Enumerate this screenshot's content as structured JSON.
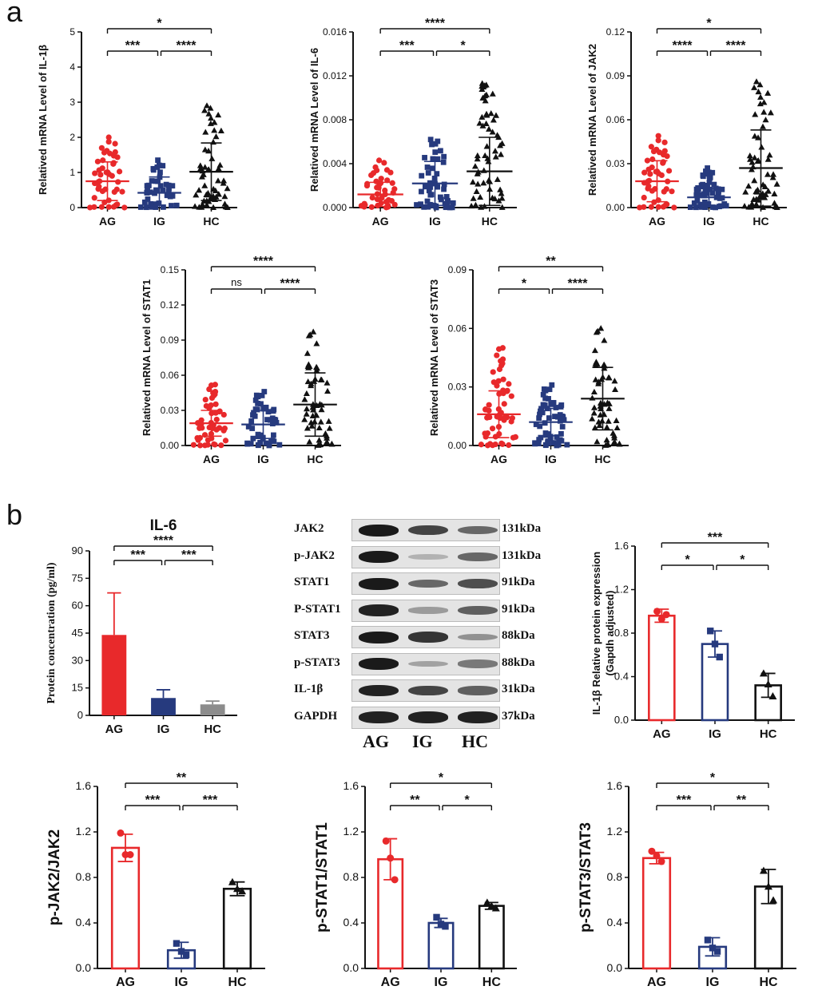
{
  "panel_labels": {
    "a": "a",
    "b": "b"
  },
  "colors": {
    "AG": "#e8292b",
    "IG": "#263a7e",
    "HC": "#111111",
    "IL6_HC_bar": "#8c8c8c"
  },
  "chart_data": [
    {
      "id": "il1b_mrna",
      "type": "scatter",
      "title": "",
      "xlabel": "",
      "ylabel": "Relatived  mRNA Level of IL-1β",
      "categories": [
        "AG",
        "IG",
        "HC"
      ],
      "ylim": [
        0,
        5
      ],
      "yticks": [
        "0",
        "1",
        "2",
        "3",
        "4",
        "5"
      ],
      "series": [
        {
          "name": "AG",
          "n": 45,
          "mean": 0.75,
          "sd": 0.55,
          "max": 2.0
        },
        {
          "name": "IG",
          "n": 45,
          "mean": 0.42,
          "sd": 0.45,
          "max": 1.35
        },
        {
          "name": "HC",
          "n": 60,
          "mean": 1.02,
          "sd": 0.82,
          "max": 2.9
        }
      ],
      "brackets": [
        {
          "from": 0,
          "to": 1,
          "label": "***",
          "level": 0
        },
        {
          "from": 1,
          "to": 2,
          "label": "****",
          "level": 0
        },
        {
          "from": 0,
          "to": 2,
          "label": "*",
          "level": 1
        }
      ]
    },
    {
      "id": "il6_mrna",
      "type": "scatter",
      "title": "",
      "xlabel": "",
      "ylabel": "Relatived  mRNA Level of IL-6",
      "categories": [
        "AG",
        "IG",
        "HC"
      ],
      "ylim": [
        0,
        0.016
      ],
      "yticks": [
        "0.000",
        "0.004",
        "0.008",
        "0.012",
        "0.016"
      ],
      "series": [
        {
          "name": "AG",
          "n": 40,
          "mean": 0.0012,
          "sd": 0.0011,
          "max": 0.0043
        },
        {
          "name": "IG",
          "n": 50,
          "mean": 0.0022,
          "sd": 0.002,
          "max": 0.0062
        },
        {
          "name": "HC",
          "n": 60,
          "mean": 0.0033,
          "sd": 0.0031,
          "max": 0.0113
        }
      ],
      "brackets": [
        {
          "from": 0,
          "to": 1,
          "label": "***",
          "level": 0
        },
        {
          "from": 1,
          "to": 2,
          "label": "*",
          "level": 0
        },
        {
          "from": 0,
          "to": 2,
          "label": "****",
          "level": 1
        }
      ]
    },
    {
      "id": "jak2_mrna",
      "type": "scatter",
      "title": "",
      "xlabel": "",
      "ylabel": "Relatived  mRNA Level of JAK2",
      "categories": [
        "AG",
        "IG",
        "HC"
      ],
      "ylim": [
        0,
        0.12
      ],
      "yticks": [
        "0.00",
        "0.03",
        "0.06",
        "0.09",
        "0.12"
      ],
      "series": [
        {
          "name": "AG",
          "n": 45,
          "mean": 0.018,
          "sd": 0.014,
          "max": 0.049
        },
        {
          "name": "IG",
          "n": 60,
          "mean": 0.007,
          "sd": 0.006,
          "max": 0.027
        },
        {
          "name": "HC",
          "n": 60,
          "mean": 0.027,
          "sd": 0.026,
          "max": 0.086
        }
      ],
      "brackets": [
        {
          "from": 0,
          "to": 1,
          "label": "****",
          "level": 0
        },
        {
          "from": 1,
          "to": 2,
          "label": "****",
          "level": 0
        },
        {
          "from": 0,
          "to": 2,
          "label": "*",
          "level": 1
        }
      ]
    },
    {
      "id": "stat1_mrna",
      "type": "scatter",
      "title": "",
      "xlabel": "",
      "ylabel": "Relatived  mRNA Level of STAT1",
      "categories": [
        "AG",
        "IG",
        "HC"
      ],
      "ylim": [
        0,
        0.15
      ],
      "yticks": [
        "0.00",
        "0.03",
        "0.06",
        "0.09",
        "0.12",
        "0.15"
      ],
      "series": [
        {
          "name": "AG",
          "n": 50,
          "mean": 0.019,
          "sd": 0.011,
          "max": 0.052
        },
        {
          "name": "IG",
          "n": 50,
          "mean": 0.018,
          "sd": 0.012,
          "max": 0.046
        },
        {
          "name": "HC",
          "n": 55,
          "mean": 0.035,
          "sd": 0.027,
          "max": 0.097
        }
      ],
      "brackets": [
        {
          "from": 0,
          "to": 1,
          "label": "ns",
          "level": 0
        },
        {
          "from": 1,
          "to": 2,
          "label": "****",
          "level": 0
        },
        {
          "from": 0,
          "to": 2,
          "label": "****",
          "level": 1
        }
      ]
    },
    {
      "id": "stat3_mrna",
      "type": "scatter",
      "title": "",
      "xlabel": "",
      "ylabel": "Relatived  mRNA Level of STAT3",
      "categories": [
        "AG",
        "IG",
        "HC"
      ],
      "ylim": [
        0,
        0.09
      ],
      "yticks": [
        "0.00",
        "0.03",
        "0.06",
        "0.09"
      ],
      "series": [
        {
          "name": "AG",
          "n": 55,
          "mean": 0.016,
          "sd": 0.012,
          "max": 0.05
        },
        {
          "name": "IG",
          "n": 60,
          "mean": 0.012,
          "sd": 0.007,
          "max": 0.031
        },
        {
          "name": "HC",
          "n": 55,
          "mean": 0.024,
          "sd": 0.016,
          "max": 0.06
        }
      ],
      "brackets": [
        {
          "from": 0,
          "to": 1,
          "label": "*",
          "level": 0
        },
        {
          "from": 1,
          "to": 2,
          "label": "****",
          "level": 0
        },
        {
          "from": 0,
          "to": 2,
          "label": "**",
          "level": 1
        }
      ]
    },
    {
      "id": "il6_protein",
      "type": "bar",
      "style": "filled",
      "title": "IL-6",
      "xlabel": "",
      "ylabel": "Protein concentration (pg/ml)",
      "categories": [
        "AG",
        "IG",
        "HC"
      ],
      "values": [
        44,
        9.5,
        6
      ],
      "errors": [
        23,
        4.5,
        1.8
      ],
      "ylim": [
        0,
        90
      ],
      "yticks": [
        "0",
        "15",
        "30",
        "45",
        "60",
        "75",
        "90"
      ],
      "brackets": [
        {
          "from": 0,
          "to": 1,
          "label": "***",
          "level": 0
        },
        {
          "from": 1,
          "to": 2,
          "label": "***",
          "level": 0
        },
        {
          "from": 0,
          "to": 2,
          "label": "****",
          "level": 1
        }
      ]
    },
    {
      "id": "il1b_protein",
      "type": "bar",
      "style": "hollow",
      "title": "",
      "xlabel": "",
      "ylabel": "IL-1β  Relative protein expression",
      "ylabel2": "(Gapdh adjusted)",
      "categories": [
        "AG",
        "IG",
        "HC"
      ],
      "values": [
        0.96,
        0.7,
        0.32
      ],
      "errors": [
        0.06,
        0.12,
        0.11
      ],
      "points": [
        [
          1.0,
          0.93,
          0.97
        ],
        [
          0.82,
          0.7,
          0.58
        ],
        [
          0.43,
          0.33,
          0.22
        ]
      ],
      "ylim": [
        0,
        1.6
      ],
      "yticks": [
        "0.0",
        "0.4",
        "0.8",
        "1.2",
        "1.6"
      ],
      "brackets": [
        {
          "from": 0,
          "to": 1,
          "label": "*",
          "level": 0
        },
        {
          "from": 1,
          "to": 2,
          "label": "*",
          "level": 0
        },
        {
          "from": 0,
          "to": 2,
          "label": "***",
          "level": 1
        }
      ]
    },
    {
      "id": "pjak2_ratio",
      "type": "bar",
      "style": "hollow",
      "title": "",
      "xlabel": "",
      "ylabel": "p-JAK2/JAK2",
      "categories": [
        "AG",
        "IG",
        "HC"
      ],
      "values": [
        1.06,
        0.16,
        0.7
      ],
      "errors": [
        0.12,
        0.07,
        0.06
      ],
      "points": [
        [
          1.19,
          1.0,
          1.0
        ],
        [
          0.22,
          0.15,
          0.12
        ],
        [
          0.76,
          0.7,
          0.68
        ]
      ],
      "ylim": [
        0,
        1.6
      ],
      "yticks": [
        "0.0",
        "0.4",
        "0.8",
        "1.2",
        "1.6"
      ],
      "brackets": [
        {
          "from": 0,
          "to": 1,
          "label": "***",
          "level": 0
        },
        {
          "from": 1,
          "to": 2,
          "label": "***",
          "level": 0
        },
        {
          "from": 0,
          "to": 2,
          "label": "**",
          "level": 1
        }
      ]
    },
    {
      "id": "pstat1_ratio",
      "type": "bar",
      "style": "hollow",
      "title": "",
      "xlabel": "",
      "ylabel": "p-STAT1/STAT1",
      "categories": [
        "AG",
        "IG",
        "HC"
      ],
      "values": [
        0.96,
        0.4,
        0.55
      ],
      "errors": [
        0.18,
        0.04,
        0.03
      ],
      "points": [
        [
          1.12,
          0.97,
          0.78
        ],
        [
          0.45,
          0.39,
          0.37
        ],
        [
          0.58,
          0.55,
          0.53
        ]
      ],
      "ylim": [
        0,
        1.6
      ],
      "yticks": [
        "0.0",
        "0.4",
        "0.8",
        "1.2",
        "1.6"
      ],
      "brackets": [
        {
          "from": 0,
          "to": 1,
          "label": "**",
          "level": 0
        },
        {
          "from": 1,
          "to": 2,
          "label": "*",
          "level": 0
        },
        {
          "from": 0,
          "to": 2,
          "label": "*",
          "level": 1
        }
      ]
    },
    {
      "id": "pstat3_ratio",
      "type": "bar",
      "style": "hollow",
      "title": "",
      "xlabel": "",
      "ylabel": "p-STAT3/STAT3",
      "categories": [
        "AG",
        "IG",
        "HC"
      ],
      "values": [
        0.97,
        0.19,
        0.72
      ],
      "errors": [
        0.05,
        0.08,
        0.15
      ],
      "points": [
        [
          1.03,
          0.99,
          0.94
        ],
        [
          0.25,
          0.18,
          0.15
        ],
        [
          0.86,
          0.72,
          0.6
        ]
      ],
      "ylim": [
        0,
        1.6
      ],
      "yticks": [
        "0.0",
        "0.4",
        "0.8",
        "1.2",
        "1.6"
      ],
      "brackets": [
        {
          "from": 0,
          "to": 1,
          "label": "***",
          "level": 0
        },
        {
          "from": 1,
          "to": 2,
          "label": "**",
          "level": 0
        },
        {
          "from": 0,
          "to": 2,
          "label": "*",
          "level": 1
        }
      ]
    }
  ],
  "western_blot": {
    "rows": [
      {
        "protein": "JAK2",
        "size": "131kDa",
        "intensity": [
          1.0,
          0.75,
          0.55
        ]
      },
      {
        "protein": "p-JAK2",
        "size": "131kDa",
        "intensity": [
          1.0,
          0.12,
          0.55
        ]
      },
      {
        "protein": "STAT1",
        "size": "91kDa",
        "intensity": [
          1.0,
          0.55,
          0.7
        ]
      },
      {
        "protein": "P-STAT1",
        "size": "91kDa",
        "intensity": [
          0.95,
          0.25,
          0.6
        ]
      },
      {
        "protein": "STAT3",
        "size": "88kDa",
        "intensity": [
          1.0,
          0.85,
          0.3
        ]
      },
      {
        "protein": "p-STAT3",
        "size": "88kDa",
        "intensity": [
          1.0,
          0.2,
          0.45
        ]
      },
      {
        "protein": "IL-1β",
        "size": "31kDa",
        "intensity": [
          0.95,
          0.75,
          0.6
        ]
      },
      {
        "protein": "GAPDH",
        "size": "37kDa",
        "intensity": [
          0.95,
          0.95,
          0.95
        ]
      }
    ],
    "groups": [
      "AG",
      "IG",
      "HC"
    ]
  }
}
